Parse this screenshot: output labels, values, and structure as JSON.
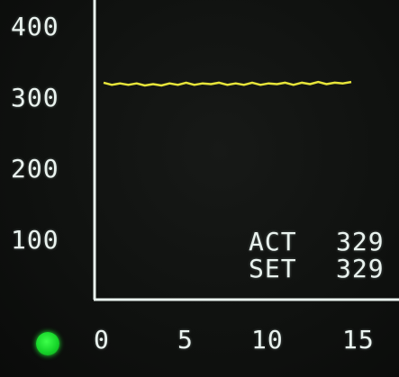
{
  "display": {
    "y_ticks": [
      "400",
      "300",
      "200",
      "100"
    ],
    "x_ticks": [
      "0",
      "5",
      "10",
      "15"
    ],
    "readouts": [
      {
        "label": "ACT",
        "value": "329"
      },
      {
        "label": "SET",
        "value": "329"
      }
    ],
    "status_led_color": "#22e834"
  },
  "chart_data": {
    "type": "line",
    "xlim": [
      0,
      15
    ],
    "ylim": [
      0,
      400
    ],
    "y_ticks": [
      100,
      200,
      300,
      400
    ],
    "x_ticks": [
      0,
      5,
      10,
      15
    ],
    "series": [
      {
        "color": "#e6e43a",
        "x": [
          0,
          0.5,
          1,
          1.5,
          2,
          2.5,
          3,
          3.5,
          4,
          4.5,
          5,
          5.5,
          6,
          6.5,
          7,
          7.5,
          8,
          8.5,
          9,
          9.5,
          10,
          10.5,
          11,
          11.5,
          12,
          12.5,
          13,
          13.5,
          14,
          14.5,
          15
        ],
        "y": [
          328,
          325,
          327,
          325,
          327,
          324,
          326,
          324,
          327,
          325,
          328,
          325,
          327,
          326,
          328,
          325,
          327,
          325,
          328,
          325,
          327,
          326,
          328,
          325,
          328,
          326,
          329,
          326,
          328,
          327,
          329
        ]
      }
    ]
  }
}
